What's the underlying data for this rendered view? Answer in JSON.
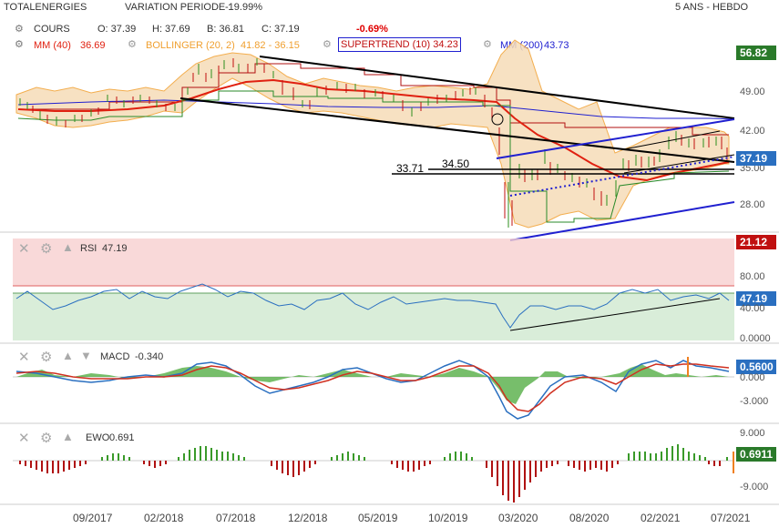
{
  "header": {
    "instrument": "TOTALENERGIES",
    "variation_label": "VARIATION PERIODE :",
    "variation_value": "-19.99%",
    "period": "5 ANS - HEBDO"
  },
  "legend_row1": {
    "cours_label": "COURS",
    "open": "O: 37.39",
    "high": "H: 37.69",
    "low": "B: 36.81",
    "close": "C: 37.19",
    "change": "-0.69%"
  },
  "legend_row2": {
    "mm40": "MM (40)",
    "mm40_value": "36.69",
    "bollinger": "BOLLINGER (20, 2)",
    "bollinger_value": "41.82 - 36.15",
    "supertrend": "SUPERTREND (10)",
    "supertrend_value": "34.23",
    "mm200": "MM (200)",
    "mm200_value": "43.73"
  },
  "colors": {
    "price": "#2d8f1e",
    "down": "#c01010",
    "mm40": "#e02010",
    "bollinger": "#f2a030",
    "bollinger_fill": "#f6dcb8",
    "supertrend": "#b01010",
    "mm200": "#2020d0",
    "rsi": "#2a6fc0",
    "macd": "#2a6fc0",
    "signal": "#d03020",
    "hist_pos": "#3a9a2a",
    "hist_neg": "#b01010",
    "tag_green": "#2a7a2a",
    "tag_red": "#c01010",
    "tag_blue": "#2a6fc0"
  },
  "main_chart": {
    "tags": {
      "top": "56.82",
      "current": "37.19",
      "bottom": "21.12"
    },
    "y_ticks": [
      "49.00",
      "42.00",
      "35.00",
      "28.00"
    ],
    "annotations": [
      "33.71",
      "34.50"
    ]
  },
  "rsi_panel": {
    "label": "RSI",
    "value": "47.19",
    "y_ticks": [
      "80.00",
      "40.00",
      "0.0000"
    ]
  },
  "macd_panel": {
    "label": "MACD",
    "value": "-0.340",
    "tag": "0.5600",
    "y_ticks": [
      "0.000",
      "-3.000"
    ]
  },
  "ewo_panel": {
    "label": "EWO",
    "value": "0.691",
    "tag": "0.6911",
    "y_ticks": [
      "9.000",
      "-9.000"
    ]
  },
  "x_axis": {
    "labels": [
      "09/2017",
      "02/2018",
      "07/2018",
      "12/2018",
      "05/2019",
      "10/2019",
      "03/2020",
      "08/2020",
      "02/2021",
      "07/2021"
    ]
  },
  "chart_data": {
    "type": "line",
    "title": "TOTALENERGIES",
    "period": "5 ANS - HEBDO",
    "x": [
      "09/2017",
      "02/2018",
      "07/2018",
      "12/2018",
      "05/2019",
      "10/2019",
      "03/2020",
      "08/2020",
      "02/2021",
      "07/2021"
    ],
    "ylim": [
      21.12,
      56.82
    ],
    "series": [
      {
        "name": "COURS",
        "values": [
          44.5,
          43.2,
          52.8,
          47.2,
          49.4,
          48.1,
          24.5,
          30.8,
          39.8,
          37.19
        ]
      },
      {
        "name": "MM (40)",
        "values": [
          45.2,
          44.8,
          50.1,
          49.3,
          48.0,
          48.2,
          45.1,
          32.0,
          33.8,
          36.69
        ]
      },
      {
        "name": "MM (200)",
        "values": [
          46.5,
          46.8,
          46.6,
          45.9,
          45.6,
          45.6,
          44.8,
          43.8,
          43.7,
          43.73
        ]
      }
    ],
    "rsi": {
      "name": "RSI",
      "value": 47.19,
      "ylim": [
        0,
        100
      ]
    },
    "macd": {
      "name": "MACD",
      "value": -0.34
    },
    "ewo": {
      "name": "EWO",
      "value": 0.691
    }
  }
}
